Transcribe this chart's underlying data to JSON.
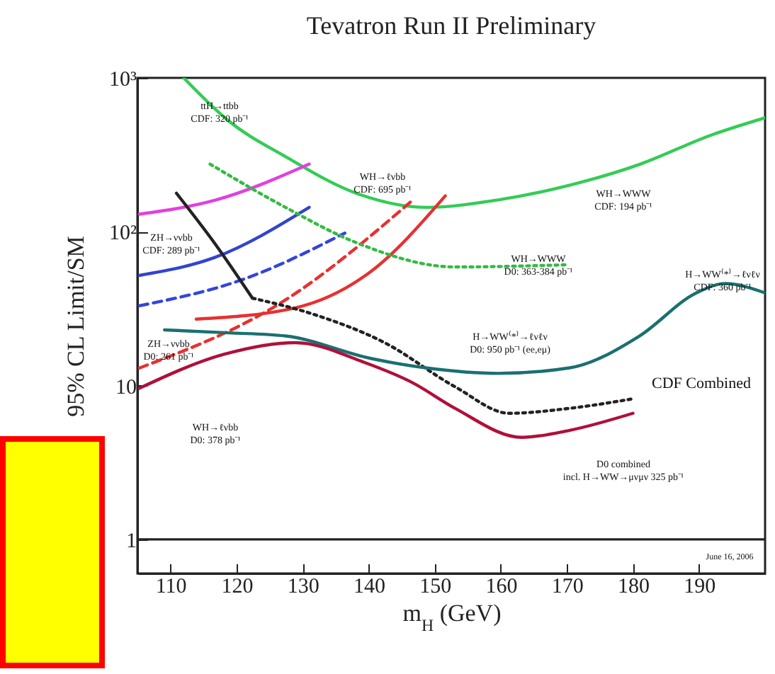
{
  "chart_data": {
    "type": "line",
    "title": "Tevatron Run II Preliminary",
    "xlabel": "m$_{H}$ (GeV)",
    "ylabel": "95% CL Limit/SM",
    "log": true,
    "grid": false,
    "marker": "none",
    "xlim": [
      105,
      200
    ],
    "xticks": [
      110,
      120,
      130,
      140,
      150,
      160,
      170,
      180,
      190
    ],
    "ylim": [
      0.6,
      1000
    ],
    "yticks": [
      1,
      10,
      {
        "value": 100,
        "label": "10²"
      },
      {
        "value": 1000,
        "label": "10³"
      }
    ],
    "series": [
      {
        "color": "#33cc55",
        "line_style": "solid",
        "x": [
          112,
          118.8,
          127.4,
          138.1,
          148.8,
          159.6,
          170.3,
          181.1,
          191.8,
          200
        ],
        "values": [
          1000,
          525,
          308,
          178,
          144,
          161,
          200,
          275,
          424,
          550
        ]
      },
      {
        "color": "#e040e0",
        "line_style": "solid",
        "x": [
          105.3,
          116.7,
          131
        ],
        "values": [
          130,
          160,
          275
        ]
      },
      {
        "color": "#3344cc",
        "line_style": "solid",
        "x": [
          105.3,
          116.7,
          131
        ],
        "values": [
          52,
          68,
          144
        ]
      },
      {
        "color": "#3344dd",
        "line_style": "dashed",
        "x": [
          105.3,
          121,
          136.4
        ],
        "values": [
          33,
          49,
          98
        ]
      },
      {
        "color": "#e83030",
        "line_style": "dashed",
        "x": [
          105.3,
          127.4,
          146.7
        ],
        "values": [
          13,
          36,
          161
        ]
      },
      {
        "color": "#e83030",
        "line_style": "solid",
        "x": [
          113.9,
          128.9,
          140.3,
          151.6
        ],
        "values": [
          27,
          32,
          55,
          171
        ]
      },
      {
        "color": "#33bb44",
        "line_style": "dotted",
        "x": [
          116,
          127.4,
          138.1,
          153.1,
          170.3
        ],
        "values": [
          275,
          144,
          85,
          59,
          61
        ]
      },
      {
        "color": "#222222",
        "line_style": "solid",
        "x": [
          110.9,
          116.7,
          122.4
        ],
        "values": [
          178,
          84,
          37
        ]
      },
      {
        "color": "#222222",
        "line_style": "dotted",
        "x": [
          122.4,
          131.7,
          142.4,
          153.1,
          161.3,
          170.3,
          180
        ],
        "values": [
          37,
          29,
          19,
          9.8,
          6.6,
          7.1,
          8.2
        ]
      },
      {
        "color": "#1a7070",
        "line_style": "solid",
        "x": [
          109.1,
          118.8,
          127.4,
          140.3,
          148.8,
          159.6,
          170.3,
          181,
          189.6,
          193.9,
          200
        ],
        "values": [
          23,
          22,
          21,
          15,
          13,
          12,
          13,
          21,
          40,
          46,
          40
        ]
      },
      {
        "color": "#b0103a",
        "line_style": "solid",
        "x": [
          105.3,
          118.2,
          128.9,
          139.6,
          146.7,
          153.1,
          163.2,
          170.3,
          180
        ],
        "values": [
          9.6,
          16,
          19,
          14,
          10.4,
          7.1,
          4.6,
          5.1,
          6.6
        ]
      }
    ],
    "ref_lines": [
      {
        "axis": "y",
        "value": 1,
        "color": "#222222"
      }
    ],
    "annotations": [
      "ttH→ttbb\nCDF: 320 pb⁻¹",
      "WH→ℓνbb\nCDF: 695 pb⁻¹",
      "WH→WWW\nCDF: 194 pb⁻¹",
      "ZH→ννbb\nCDF: 289 pb⁻¹",
      "WH→WWW\nD0: 363-384 pb⁻¹",
      "H→WW⁽*⁾→ℓνℓν\nCDF: 360 pb⁻¹",
      "ZH→ννbb\nD0: 261 pb⁻¹",
      "H→WW⁽*⁾→ℓνℓν\nD0: 950 pb⁻¹ (ee,eμ)",
      "CDF Combined",
      "WH→ℓνbb\nD0: 378 pb⁻¹",
      "D0 combined\nincl. H→WW→μνμν 325 pb⁻¹",
      "June 16, 2006"
    ]
  }
}
